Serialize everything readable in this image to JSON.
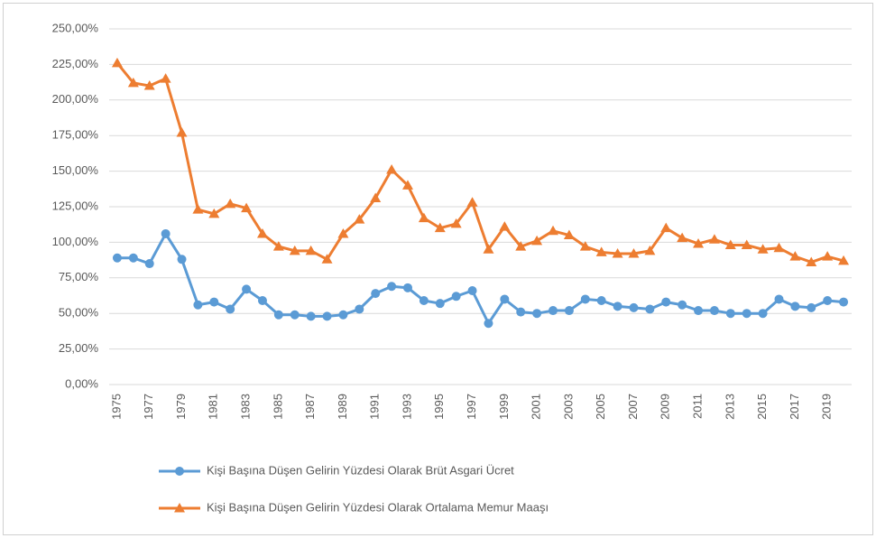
{
  "chart_data": {
    "type": "line",
    "categories": [
      "1975",
      null,
      "1977",
      null,
      "1979",
      null,
      "1981",
      null,
      "1983",
      null,
      "1985",
      null,
      "1987",
      null,
      "1989",
      null,
      "1991",
      null,
      "1993",
      null,
      "1995",
      null,
      "1997",
      null,
      "1999",
      null,
      "2001",
      null,
      "2003",
      null,
      "2005",
      null,
      "2007",
      null,
      "2009",
      null,
      "2011",
      null,
      "2013",
      null,
      "2015",
      null,
      "2017",
      null,
      "2019",
      null
    ],
    "series": [
      {
        "name": "Kişi Başına Düşen Gelirin Yüzdesi Olarak Brüt Asgari Ücret",
        "color": "#5b9bd5",
        "marker": "circle",
        "values": [
          89,
          89,
          85,
          106,
          88,
          56,
          58,
          53,
          67,
          59,
          49,
          49,
          48,
          48,
          49,
          53,
          64,
          69,
          68,
          59,
          57,
          62,
          66,
          43,
          60,
          51,
          50,
          52,
          52,
          60,
          59,
          55,
          54,
          53,
          58,
          56,
          52,
          52,
          50,
          50,
          50,
          60,
          55,
          54,
          59,
          58
        ]
      },
      {
        "name": "Kişi Başına Düşen Gelirin Yüzdesi Olarak Ortalama Memur Maaşı",
        "color": "#ed7d31",
        "marker": "triangle",
        "values": [
          226,
          212,
          210,
          215,
          177,
          123,
          120,
          127,
          124,
          106,
          97,
          94,
          94,
          88,
          106,
          116,
          131,
          151,
          140,
          117,
          110,
          113,
          128,
          95,
          111,
          97,
          101,
          108,
          105,
          97,
          93,
          92,
          92,
          94,
          110,
          103,
          99,
          102,
          98,
          98,
          95,
          96,
          90,
          86,
          90,
          87
        ]
      }
    ],
    "ylim": [
      0,
      250
    ],
    "yticks": [
      {
        "value": 0,
        "label": "0,00%"
      },
      {
        "value": 25,
        "label": "25,00%"
      },
      {
        "value": 50,
        "label": "50,00%"
      },
      {
        "value": 75,
        "label": "75,00%"
      },
      {
        "value": 100,
        "label": "100,00%"
      },
      {
        "value": 125,
        "label": "125,00%"
      },
      {
        "value": 150,
        "label": "150,00%"
      },
      {
        "value": 175,
        "label": "175,00%"
      },
      {
        "value": 200,
        "label": "200,00%"
      },
      {
        "value": 225,
        "label": "225,00%"
      },
      {
        "value": 250,
        "label": "250,00%"
      }
    ],
    "grid": true,
    "legend": "bottom"
  }
}
